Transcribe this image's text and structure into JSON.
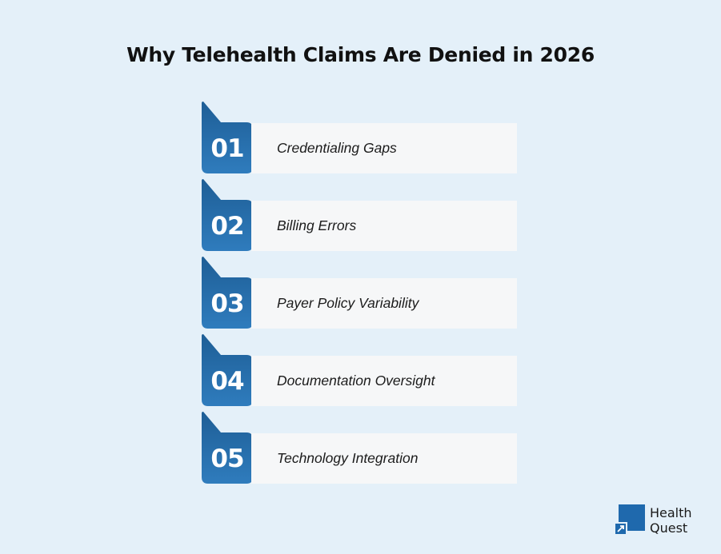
{
  "title": "Why Telehealth Claims Are Denied in 2026",
  "colors": {
    "tab": "#2e78b7",
    "tab_dark": "#1e5e96",
    "card": "#f6f7f8",
    "background": "#e4f0f9"
  },
  "items": [
    {
      "number": "01",
      "label": "Credentialing Gaps"
    },
    {
      "number": "02",
      "label": "Billing Errors"
    },
    {
      "number": "03",
      "label": "Payer Policy Variability"
    },
    {
      "number": "04",
      "label": "Documentation Oversight"
    },
    {
      "number": "05",
      "label": "Technology Integration"
    }
  ],
  "logo": {
    "line1": "Health",
    "line2": "Quest",
    "icon": "health-quest-logo-icon"
  }
}
